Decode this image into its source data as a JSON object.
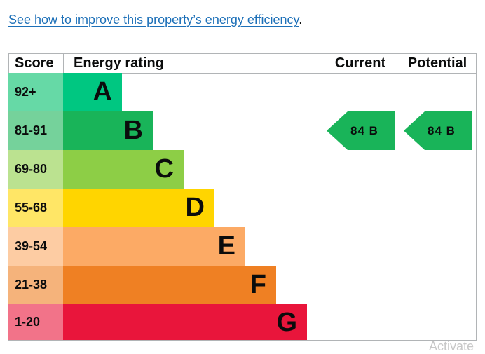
{
  "link": {
    "text": "See how to improve this property’s energy efficiency",
    "trailing": "."
  },
  "headers": {
    "score": "Score",
    "energy_rating": "Energy rating",
    "current": "Current",
    "potential": "Potential"
  },
  "bands": [
    {
      "score": "92+",
      "letter": "A",
      "color": "#00c781",
      "score_bg": "#66d9a6"
    },
    {
      "score": "81-91",
      "letter": "B",
      "color": "#19b459",
      "score_bg": "#75d29b"
    },
    {
      "score": "69-80",
      "letter": "C",
      "color": "#8dce46",
      "score_bg": "#bbe290"
    },
    {
      "score": "55-68",
      "letter": "D",
      "color": "#ffd500",
      "score_bg": "#ffe666"
    },
    {
      "score": "39-54",
      "letter": "E",
      "color": "#fcaa65",
      "score_bg": "#fdcca3"
    },
    {
      "score": "21-38",
      "letter": "F",
      "color": "#ef8023",
      "score_bg": "#f5b37b"
    },
    {
      "score": "1-20",
      "letter": "G",
      "color": "#e9153b",
      "score_bg": "#f27389"
    }
  ],
  "current": {
    "label": "84 B",
    "color": "#19b459"
  },
  "potential": {
    "label": "84 B",
    "color": "#19b459"
  },
  "watermark": "Activate"
}
